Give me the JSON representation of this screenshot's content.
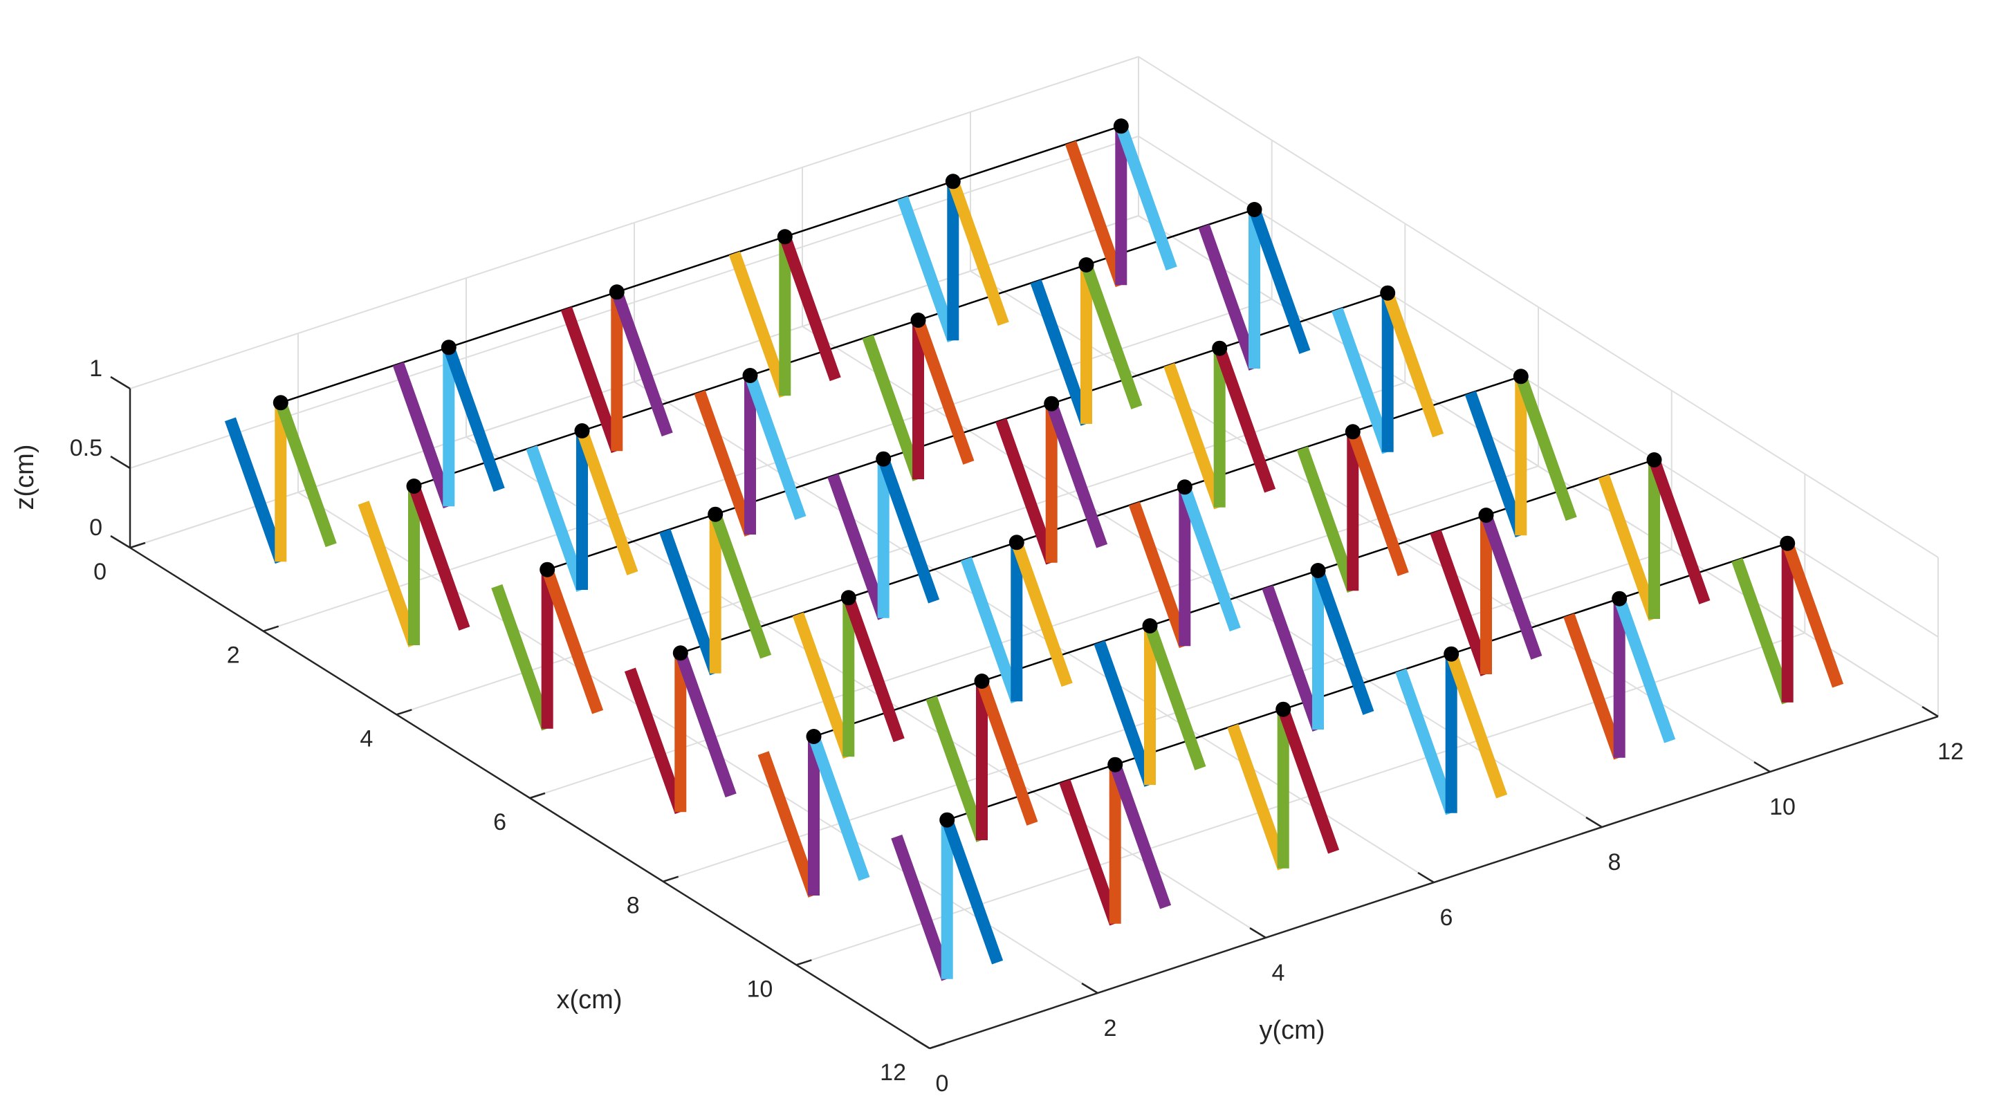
{
  "chart_data": {
    "type": "3d-line",
    "title": "",
    "xlabel": "x(cm)",
    "ylabel": "y(cm)",
    "zlabel": "z(cm)",
    "xlim": [
      0,
      12
    ],
    "ylim": [
      0,
      12
    ],
    "zlim": [
      0,
      1
    ],
    "x_ticks": [
      0,
      2,
      4,
      6,
      8,
      10,
      12
    ],
    "y_ticks": [
      0,
      2,
      4,
      6,
      8,
      10,
      12
    ],
    "z_ticks": [
      0,
      0.5,
      1
    ],
    "x_tick_labels": [
      "0",
      "2",
      "4",
      "6",
      "8",
      "10",
      "12"
    ],
    "y_tick_labels": [
      "0",
      "2",
      "4",
      "6",
      "8",
      "10",
      "12"
    ],
    "z_tick_labels": [
      "0",
      "0.5",
      "1"
    ],
    "grid": true,
    "box": "3d-back-planes",
    "lattice_rows_x": [
      1,
      3,
      5,
      7,
      9,
      11
    ],
    "lattice_cols_y": [
      1,
      3,
      5,
      7,
      9,
      11
    ],
    "lattice_node_z": 1,
    "zigzag_profile": [
      {
        "dx": -0.6,
        "z": 1
      },
      {
        "dx": 0.0,
        "z": 0
      },
      {
        "dx": 0.0,
        "z": 1
      },
      {
        "dx": 0.6,
        "z": 0
      }
    ],
    "segment_colors": [
      "#0072BD",
      "#D95319",
      "#EDB120",
      "#7E2F8E",
      "#77AC30",
      "#4DBEEE",
      "#A2142F"
    ],
    "node_color": "#000000",
    "link_color": "#000000"
  }
}
